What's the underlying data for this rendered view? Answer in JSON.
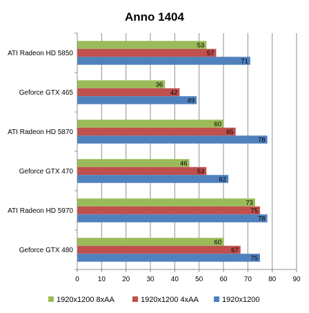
{
  "chart_data": {
    "type": "bar",
    "orientation": "horizontal",
    "title": "Anno 1404",
    "xlabel": "",
    "ylabel": "",
    "xlim": [
      0,
      90
    ],
    "x_ticks": [
      0,
      10,
      20,
      30,
      40,
      50,
      60,
      70,
      80,
      90
    ],
    "grid": "vertical",
    "legend_position": "bottom",
    "categories": [
      "ATI Radeon HD 5850",
      "Geforce GTX 465",
      "ATI Radeon HD 5870",
      "Geforce GTX 470",
      "ATI Radeon HD 5970",
      "Geforce GTX 480"
    ],
    "series": [
      {
        "name": "1920x1200 8xAA",
        "color": "#9BBB59",
        "values": [
          53,
          36,
          60,
          46,
          73,
          60
        ]
      },
      {
        "name": "1920x1200 4xAA",
        "color": "#C0504D",
        "values": [
          57,
          42,
          65,
          53,
          75,
          67
        ]
      },
      {
        "name": "1920x1200",
        "color": "#4F81BD",
        "values": [
          71,
          49,
          78,
          62,
          78,
          75
        ]
      }
    ]
  }
}
